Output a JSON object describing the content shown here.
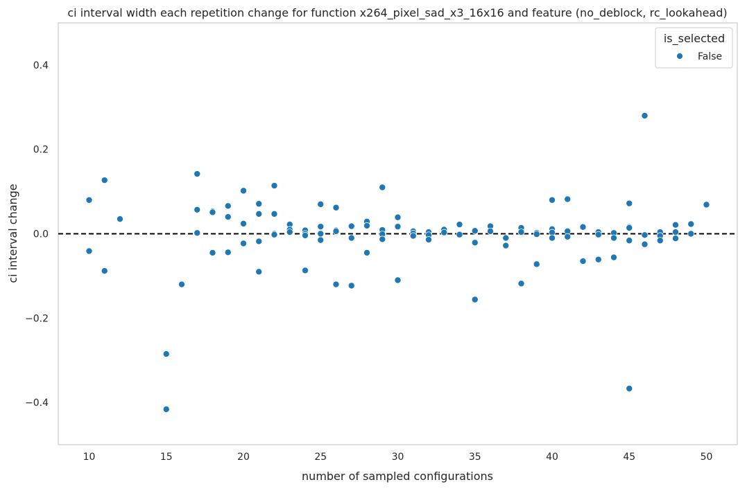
{
  "chart_data": {
    "type": "scatter",
    "title": "ci interval width each repetition change for function x264_pixel_sad_x3_16x16 and feature (no_deblock, rc_lookahead)",
    "xlabel": "number of sampled configurations",
    "ylabel": "ci interval change",
    "xlim": [
      8,
      52
    ],
    "ylim": [
      -0.5,
      0.5
    ],
    "xticks": [
      10,
      15,
      20,
      25,
      30,
      35,
      40,
      45,
      50
    ],
    "yticks": [
      -0.4,
      -0.2,
      0.0,
      0.2,
      0.4
    ],
    "ytick_labels": [
      "−0.4",
      "−0.2",
      "0.0",
      "0.2",
      "0.4"
    ],
    "grid": false,
    "reference_line": {
      "y": 0.0,
      "style": "dashed",
      "color": "#000000"
    },
    "legend": {
      "title": "is_selected",
      "position": "top-right",
      "entries": [
        {
          "label": "False",
          "color": "#1f77b4"
        }
      ]
    },
    "series": [
      {
        "name": "False",
        "color": "#1f77b4",
        "points": [
          [
            10,
            0.08
          ],
          [
            10,
            -0.041
          ],
          [
            11,
            0.127
          ],
          [
            11,
            -0.088
          ],
          [
            12,
            0.035
          ],
          [
            15,
            -0.285
          ],
          [
            15,
            -0.416
          ],
          [
            16,
            -0.12
          ],
          [
            17,
            0.142
          ],
          [
            17,
            0.057
          ],
          [
            17,
            0.002
          ],
          [
            18,
            0.053
          ],
          [
            18,
            0.051
          ],
          [
            18,
            -0.045
          ],
          [
            19,
            0.066
          ],
          [
            19,
            0.04
          ],
          [
            19,
            -0.044
          ],
          [
            20,
            0.102
          ],
          [
            20,
            0.024
          ],
          [
            20,
            -0.023
          ],
          [
            21,
            0.071
          ],
          [
            21,
            0.047
          ],
          [
            21,
            -0.018
          ],
          [
            21,
            -0.09
          ],
          [
            22,
            0.114
          ],
          [
            22,
            0.047
          ],
          [
            22,
            0.0
          ],
          [
            22,
            -0.002
          ],
          [
            23,
            0.022
          ],
          [
            23,
            0.01
          ],
          [
            23,
            0.004
          ],
          [
            24,
            0.008
          ],
          [
            24,
            0.0
          ],
          [
            24,
            -0.004
          ],
          [
            24,
            -0.087
          ],
          [
            25,
            0.07
          ],
          [
            25,
            0.017
          ],
          [
            25,
            0.0
          ],
          [
            25,
            -0.015
          ],
          [
            26,
            0.062
          ],
          [
            26,
            0.008
          ],
          [
            26,
            0.006
          ],
          [
            26,
            -0.12
          ],
          [
            27,
            0.018
          ],
          [
            27,
            -0.01
          ],
          [
            27,
            -0.123
          ],
          [
            28,
            0.029
          ],
          [
            28,
            0.019
          ],
          [
            28,
            -0.045
          ],
          [
            29,
            0.11
          ],
          [
            29,
            0.009
          ],
          [
            29,
            -0.001
          ],
          [
            29,
            -0.013
          ],
          [
            30,
            0.039
          ],
          [
            30,
            0.017
          ],
          [
            30,
            -0.11
          ],
          [
            31,
            0.006
          ],
          [
            31,
            0.001
          ],
          [
            31,
            -0.005
          ],
          [
            32,
            0.004
          ],
          [
            32,
            -0.003
          ],
          [
            32,
            -0.014
          ],
          [
            33,
            0.01
          ],
          [
            33,
            0.003
          ],
          [
            34,
            0.022
          ],
          [
            34,
            -0.002
          ],
          [
            35,
            0.007
          ],
          [
            35,
            -0.021
          ],
          [
            35,
            -0.156
          ],
          [
            36,
            0.018
          ],
          [
            36,
            0.006
          ],
          [
            37,
            -0.01
          ],
          [
            37,
            -0.028
          ],
          [
            38,
            0.014
          ],
          [
            38,
            0.004
          ],
          [
            38,
            -0.118
          ],
          [
            39,
            0.002
          ],
          [
            39,
            -0.001
          ],
          [
            39,
            -0.072
          ],
          [
            40,
            0.08
          ],
          [
            40,
            0.011
          ],
          [
            40,
            0.003
          ],
          [
            40,
            -0.01
          ],
          [
            41,
            0.082
          ],
          [
            41,
            0.006
          ],
          [
            41,
            -0.007
          ],
          [
            42,
            0.016
          ],
          [
            42,
            -0.065
          ],
          [
            43,
            0.004
          ],
          [
            43,
            -0.002
          ],
          [
            43,
            -0.061
          ],
          [
            44,
            0.002
          ],
          [
            44,
            -0.01
          ],
          [
            44,
            -0.056
          ],
          [
            45,
            0.072
          ],
          [
            45,
            0.016
          ],
          [
            45,
            0.014
          ],
          [
            45,
            -0.016
          ],
          [
            45,
            -0.367
          ],
          [
            46,
            0.28
          ],
          [
            46,
            -0.003
          ],
          [
            46,
            -0.025
          ],
          [
            47,
            0.004
          ],
          [
            47,
            -0.005
          ],
          [
            47,
            -0.016
          ],
          [
            48,
            0.021
          ],
          [
            48,
            0.004
          ],
          [
            48,
            -0.011
          ],
          [
            49,
            0.023
          ],
          [
            49,
            0.0
          ],
          [
            50,
            0.069
          ]
        ]
      }
    ]
  }
}
